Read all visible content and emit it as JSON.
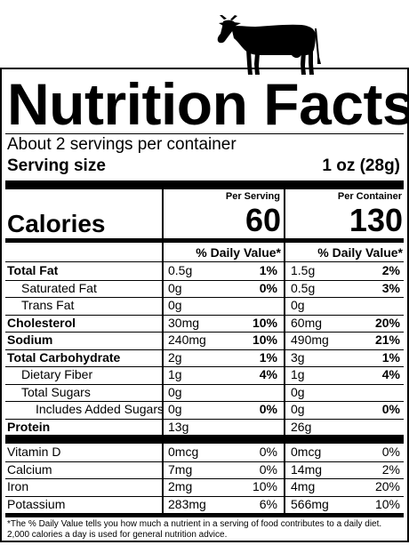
{
  "label": {
    "title": "Nutrition Facts",
    "servings_per_container": "About 2 servings per container",
    "serving_size_label": "Serving size",
    "serving_size_value": "1 oz (28g)",
    "per_serving_header": "Per Serving",
    "per_container_header": "Per Container",
    "calories_label": "Calories",
    "calories_per_serving": "60",
    "calories_per_container": "130",
    "daily_value_header": "% Daily Value*"
  },
  "nutrients": [
    {
      "name": "Total Fat",
      "bold": true,
      "indent": 0,
      "serving_amount": "0.5g",
      "serving_dv": "1%",
      "container_amount": "1.5g",
      "container_dv": "2%"
    },
    {
      "name": "Saturated Fat",
      "bold": false,
      "indent": 1,
      "serving_amount": "0g",
      "serving_dv": "0%",
      "container_amount": "0.5g",
      "container_dv": "3%"
    },
    {
      "name": "Trans Fat",
      "bold": false,
      "indent": 1,
      "serving_amount": "0g",
      "serving_dv": "",
      "container_amount": "0g",
      "container_dv": ""
    },
    {
      "name": "Cholesterol",
      "bold": true,
      "indent": 0,
      "serving_amount": "30mg",
      "serving_dv": "10%",
      "container_amount": "60mg",
      "container_dv": "20%"
    },
    {
      "name": "Sodium",
      "bold": true,
      "indent": 0,
      "serving_amount": "240mg",
      "serving_dv": "10%",
      "container_amount": "490mg",
      "container_dv": "21%"
    },
    {
      "name": "Total Carbohydrate",
      "bold": true,
      "indent": 0,
      "serving_amount": "2g",
      "serving_dv": "1%",
      "container_amount": "3g",
      "container_dv": "1%"
    },
    {
      "name": "Dietary Fiber",
      "bold": false,
      "indent": 1,
      "serving_amount": "1g",
      "serving_dv": "4%",
      "container_amount": "1g",
      "container_dv": "4%"
    },
    {
      "name": "Total Sugars",
      "bold": false,
      "indent": 1,
      "serving_amount": "0g",
      "serving_dv": "",
      "container_amount": "0g",
      "container_dv": ""
    },
    {
      "name": "Includes Added Sugars",
      "bold": false,
      "indent": 2,
      "serving_amount": "0g",
      "serving_dv": "0%",
      "container_amount": "0g",
      "container_dv": "0%"
    },
    {
      "name": "Protein",
      "bold": true,
      "indent": 0,
      "serving_amount": "13g",
      "serving_dv": "",
      "container_amount": "26g",
      "container_dv": ""
    }
  ],
  "vitamins": [
    {
      "name": "Vitamin D",
      "serving_amount": "0mcg",
      "serving_dv": "0%",
      "container_amount": "0mcg",
      "container_dv": "0%"
    },
    {
      "name": "Calcium",
      "serving_amount": "7mg",
      "serving_dv": "0%",
      "container_amount": "14mg",
      "container_dv": "2%"
    },
    {
      "name": "Iron",
      "serving_amount": "2mg",
      "serving_dv": "10%",
      "container_amount": "4mg",
      "container_dv": "20%"
    },
    {
      "name": "Potassium",
      "serving_amount": "283mg",
      "serving_dv": "6%",
      "container_amount": "566mg",
      "container_dv": "10%"
    }
  ],
  "footnote": "*The % Daily Value tells you how much a nutrient in a serving of food contributes to a daily diet. 2,000 calories a day is used for general nutrition advice.",
  "decor": {
    "cow_icon": "cow-silhouette-icon"
  }
}
